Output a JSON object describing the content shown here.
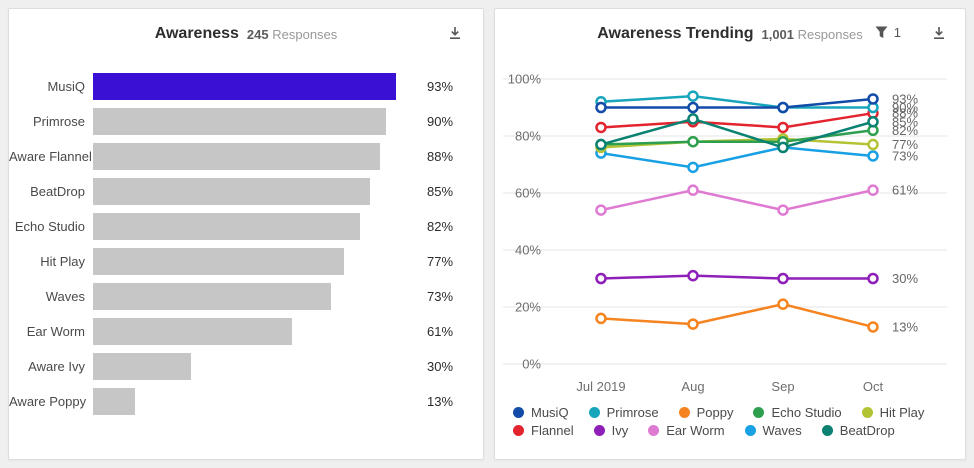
{
  "left_panel": {
    "title": "Awareness",
    "responses_count": "245",
    "responses_label": "Responses"
  },
  "right_panel": {
    "title": "Awareness Trending",
    "responses_count": "1,001",
    "responses_label": "Responses",
    "filter_count": "1"
  },
  "chart_data": [
    {
      "type": "bar",
      "orientation": "horizontal",
      "title": "Awareness",
      "subtitle": "245 Responses",
      "categories": [
        "MusiQ",
        "Primrose",
        "Aware Flannel",
        "BeatDrop",
        "Echo Studio",
        "Hit Play",
        "Waves",
        "Ear Worm",
        "Aware Ivy",
        "Aware Poppy"
      ],
      "values": [
        93,
        90,
        88,
        85,
        82,
        77,
        73,
        61,
        30,
        13
      ],
      "value_labels": [
        "93%",
        "90%",
        "88%",
        "85%",
        "82%",
        "77%",
        "73%",
        "61%",
        "30%",
        "13%"
      ],
      "xlim": [
        0,
        100
      ],
      "highlight_index": 0,
      "highlight_color": "#3A11D4",
      "bar_color": "#C6C6C6",
      "grid": false
    },
    {
      "type": "line",
      "title": "Awareness Trending",
      "subtitle": "1,001 Responses",
      "x": [
        "Jul 2019",
        "Aug",
        "Sep",
        "Oct"
      ],
      "yticks": [
        0,
        20,
        40,
        60,
        80,
        100
      ],
      "ytick_suffix": "%",
      "ylim": [
        0,
        100
      ],
      "grid": true,
      "legend_position": "bottom",
      "series": [
        {
          "name": "Ear Worm",
          "color": "#DF7AD2",
          "values": [
            54,
            61,
            54,
            61
          ],
          "end_label": "61%"
        },
        {
          "name": "Poppy",
          "color": "#F5831F",
          "values": [
            16,
            14,
            21,
            13
          ],
          "end_label": "13%"
        },
        {
          "name": "Ivy",
          "color": "#8E1FB8",
          "values": [
            30,
            31,
            30,
            30
          ],
          "end_label": "30%"
        },
        {
          "name": "Waves",
          "color": "#18A0E4",
          "values": [
            74,
            69,
            76,
            73
          ],
          "end_label": "73%"
        },
        {
          "name": "Hit Play",
          "color": "#B3C334",
          "values": [
            76,
            78,
            79,
            77
          ],
          "end_label": "77%"
        },
        {
          "name": "Echo Studio",
          "color": "#2E9E4F",
          "values": [
            77,
            78,
            78,
            82
          ],
          "end_label": "82%"
        },
        {
          "name": "Flannel",
          "color": "#E3242E",
          "values": [
            83,
            85,
            83,
            88
          ],
          "end_label": "88%"
        },
        {
          "name": "BeatDrop",
          "color": "#0A8171",
          "values": [
            77,
            86,
            76,
            85
          ],
          "end_label": "85%"
        },
        {
          "name": "Primrose",
          "color": "#17A5BC",
          "values": [
            92,
            94,
            90,
            90
          ],
          "end_label": "90%"
        },
        {
          "name": "MusiQ",
          "color": "#134BA8",
          "values": [
            90,
            90,
            90,
            93
          ],
          "end_label": "93%"
        }
      ],
      "legend_rows": [
        [
          "MusiQ",
          "Primrose",
          "Poppy",
          "Echo Studio",
          "Hit Play"
        ],
        [
          "Flannel",
          "Ivy",
          "Ear Worm",
          "Waves",
          "BeatDrop"
        ]
      ]
    }
  ]
}
